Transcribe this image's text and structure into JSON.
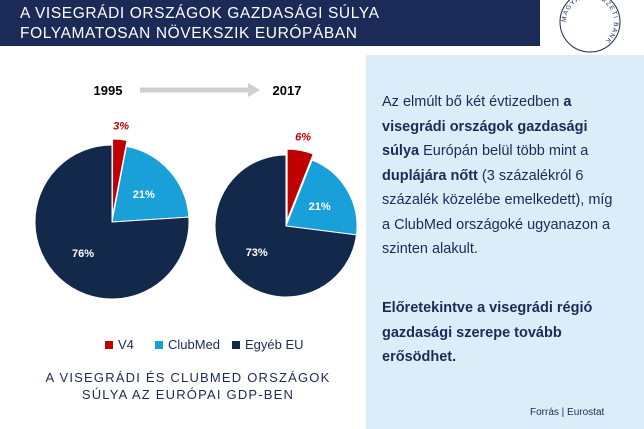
{
  "header": {
    "title_lines": [
      "A VISEGRÁDI ORSZÁGOK GAZDASÁGI SÚLYA",
      "FOLYAMATOSAN NÖVEKSZIK EURÓPÁBAN"
    ],
    "logo_text": "MAGYAR NEMZETI BANK"
  },
  "chart_data": [
    {
      "type": "pie",
      "title": "1995",
      "categories": [
        "V4",
        "ClubMed",
        "Egyéb EU"
      ],
      "values": [
        3,
        21,
        76
      ],
      "value_labels": [
        "3%",
        "21%",
        "76%"
      ],
      "colors": [
        "#c00000",
        "#1aa0d8",
        "#13294b"
      ]
    },
    {
      "type": "pie",
      "title": "2017",
      "categories": [
        "V4",
        "ClubMed",
        "Egyéb EU"
      ],
      "values": [
        6,
        21,
        73
      ],
      "value_labels": [
        "6%",
        "21%",
        "73%"
      ],
      "colors": [
        "#c00000",
        "#1aa0d8",
        "#13294b"
      ]
    }
  ],
  "caption_lines": [
    "A VISEGRÁDI ÉS CLUBMED ORSZÁGOK",
    "SÚLYA AZ EURÓPAI GDP-BEN"
  ],
  "paragraphs": [
    [
      {
        "text": "Az elmúlt bő két évtizedben ",
        "bold": false
      },
      {
        "text": "a visegrádi országok gazdasági súlya",
        "bold": true
      },
      {
        "text": " Európán belül több mint a ",
        "bold": false
      },
      {
        "text": "duplájára nőtt",
        "bold": true
      },
      {
        "text": " (3 százalékról 6 százalék közelébe emelkedett), míg a ClubMed országoké ugyanazon a szinten alakult.",
        "bold": false
      }
    ],
    [
      {
        "text": "Előretekintve a visegrádi régió gazdasági szerepe tovább erősödhet.",
        "bold": true
      }
    ]
  ],
  "source": "Forrás | Eurostat"
}
